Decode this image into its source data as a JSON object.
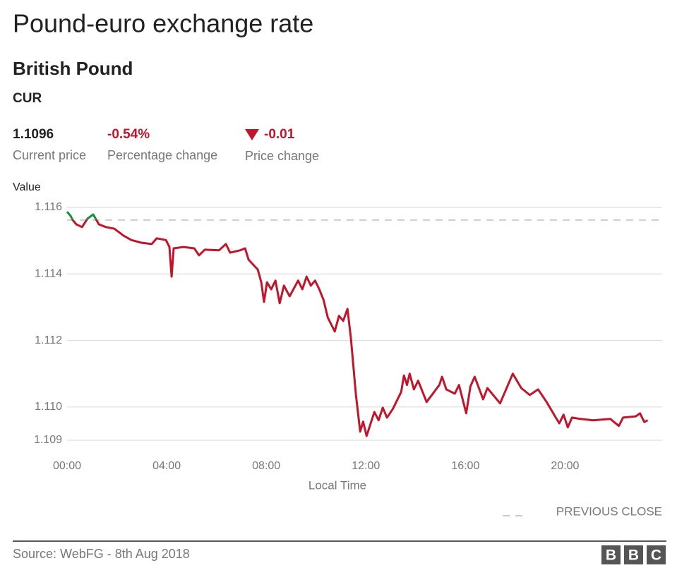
{
  "chart_data": {
    "type": "line",
    "title": "Pound-euro exchange rate",
    "subtitle": "British Pound",
    "code": "CUR",
    "stats": [
      {
        "value": "1.1096",
        "label": "Current price"
      },
      {
        "value": "-0.54%",
        "label": "Percentage change"
      },
      {
        "value": "-0.01",
        "label": "Price change"
      }
    ],
    "y_label": "Value",
    "x_label": "Local Time",
    "x": [
      0,
      0.14,
      0.23,
      0.37,
      0.6,
      0.82,
      1.05,
      1.28,
      1.56,
      1.9,
      2.27,
      2.58,
      2.98,
      3.4,
      3.6,
      3.97,
      4.11,
      4.2,
      4.28,
      4.68,
      5.11,
      5.3,
      5.53,
      6.1,
      6.38,
      6.55,
      6.95,
      7.15,
      7.29,
      7.66,
      7.8,
      7.91,
      8.03,
      8.2,
      8.37,
      8.54,
      8.71,
      8.94,
      9.28,
      9.45,
      9.62,
      9.79,
      9.96,
      10.13,
      10.3,
      10.47,
      10.75,
      10.92,
      11.09,
      11.26,
      11.4,
      11.6,
      11.77,
      11.89,
      12.03,
      12.34,
      12.51,
      12.68,
      12.85,
      13.08,
      13.42,
      13.53,
      13.65,
      13.76,
      13.93,
      14.1,
      14.44,
      14.95,
      15.06,
      15.23,
      15.57,
      15.74,
      16.03,
      16.2,
      16.37,
      16.71,
      16.88,
      17.39,
      17.9,
      18.24,
      18.58,
      18.92,
      19.26,
      19.6,
      19.77,
      19.94,
      20.11,
      20.28,
      20.62,
      21.13,
      21.82,
      22.16,
      22.33,
      22.84,
      23.01,
      23.18,
      23.32
    ],
    "series": [
      {
        "name": "British Pound",
        "color": "#c0152a",
        "above_color": "#1e8a3c",
        "values": [
          1.11587,
          1.11575,
          1.11562,
          1.11549,
          1.11541,
          1.11566,
          1.11579,
          1.11549,
          1.11541,
          1.11536,
          1.11515,
          1.11502,
          1.11494,
          1.1149,
          1.11507,
          1.11502,
          1.11481,
          1.11392,
          1.11477,
          1.11481,
          1.11477,
          1.11456,
          1.11473,
          1.11471,
          1.1149,
          1.11464,
          1.11471,
          1.11477,
          1.11443,
          1.11413,
          1.11375,
          1.11316,
          1.11375,
          1.11354,
          1.1138,
          1.11312,
          1.11365,
          1.11333,
          1.1138,
          1.11354,
          1.11392,
          1.11365,
          1.1138,
          1.11354,
          1.11322,
          1.11269,
          1.11227,
          1.11274,
          1.11259,
          1.11295,
          1.11206,
          1.11036,
          1.10926,
          1.10956,
          1.10913,
          1.10985,
          1.1096,
          1.10998,
          1.10968,
          1.10994,
          1.11045,
          1.11095,
          1.11066,
          1.111,
          1.11053,
          1.11079,
          1.11015,
          1.11066,
          1.11091,
          1.11053,
          1.1104,
          1.11066,
          1.10981,
          1.11062,
          1.11091,
          1.11023,
          1.11057,
          1.11011,
          1.111,
          1.11057,
          1.11036,
          1.11053,
          1.11015,
          1.10972,
          1.10951,
          1.10977,
          1.10939,
          1.10968,
          1.10964,
          1.1096,
          1.10964,
          1.10943,
          1.10968,
          1.10972,
          1.10981,
          1.10955,
          1.1096
        ]
      }
    ],
    "previous_close": {
      "name": "PREVIOUS CLOSE",
      "value": 1.11562,
      "color": "#cccccc"
    },
    "xlim": [
      0,
      23.9
    ],
    "xticks": [
      {
        "value": 0,
        "label": "00:00"
      },
      {
        "value": 4,
        "label": "04:00"
      },
      {
        "value": 8,
        "label": "08:00"
      },
      {
        "value": 12,
        "label": "12:00"
      },
      {
        "value": 16,
        "label": "16:00"
      },
      {
        "value": 20,
        "label": "20:00"
      }
    ],
    "ylim": [
      1.109,
      1.116
    ],
    "yticks": [
      1.116,
      1.114,
      1.112,
      {
        "value": 1.11,
        "label": "1.110"
      },
      1.109
    ],
    "grid": true,
    "source": "Source: WebFG - 8th Aug 2018",
    "logo": [
      "B",
      "B",
      "C"
    ]
  }
}
